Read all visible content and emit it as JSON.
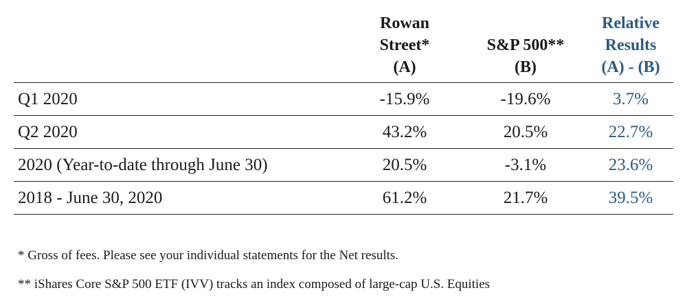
{
  "table": {
    "headers": {
      "col_a": [
        "Rowan",
        "Street*",
        "(A)"
      ],
      "col_b": [
        "S&P 500**",
        "(B)"
      ],
      "col_rel": [
        "Relative",
        "Results",
        "(A) - (B)"
      ]
    },
    "rows": [
      {
        "label": "Q1 2020",
        "a": "-15.9%",
        "b": "-19.6%",
        "rel": "3.7%"
      },
      {
        "label": "Q2 2020",
        "a": "43.2%",
        "b": "20.5%",
        "rel": "22.7%"
      },
      {
        "label": "2020 (Year-to-date through June 30)",
        "a": "20.5%",
        "b": "-3.1%",
        "rel": "23.6%"
      },
      {
        "label": "2018 - June 30, 2020",
        "a": "61.2%",
        "b": "21.7%",
        "rel": "39.5%"
      }
    ]
  },
  "footnotes": [
    "* Gross of fees. Please see your individual statements for the Net results.",
    "** iShares Core S&P 500 ETF (IVV) tracks an index composed of large-cap U.S. Equities"
  ],
  "colors": {
    "relative_results": "#2b5a82",
    "text": "#1a1a1a"
  }
}
